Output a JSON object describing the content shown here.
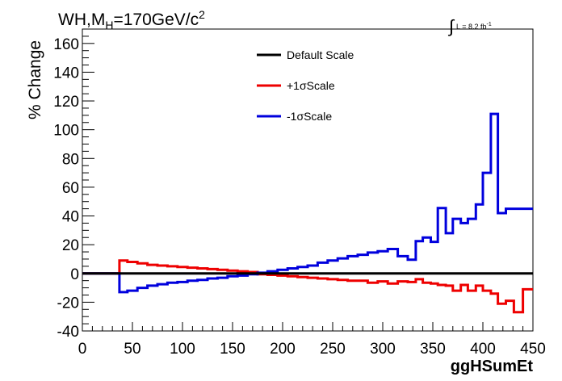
{
  "chart_data": {
    "type": "line",
    "title_parts": {
      "prefix": "WH,M",
      "sub": "H",
      "mid": "=170GeV/c",
      "sup": "2"
    },
    "luminosity": {
      "integral": "∫",
      "text": "L = 8.2 fb",
      "sup": "-1"
    },
    "xlabel": "ggHSumEt",
    "ylabel": "% Change",
    "xlim": [
      0,
      450
    ],
    "ylim": [
      -40,
      170
    ],
    "xticks": [
      0,
      50,
      100,
      150,
      200,
      250,
      300,
      350,
      400,
      450
    ],
    "yticks": [
      -40,
      -20,
      0,
      20,
      40,
      60,
      80,
      100,
      120,
      140,
      160
    ],
    "grid": false,
    "legend_position": "top-center",
    "bin_edges": [
      0,
      10,
      20,
      30,
      37,
      45,
      55,
      65,
      75,
      85,
      95,
      105,
      115,
      125,
      135,
      145,
      155,
      165,
      175,
      185,
      195,
      205,
      215,
      225,
      235,
      245,
      255,
      265,
      275,
      285,
      295,
      305,
      315,
      325,
      333,
      340,
      348,
      355,
      363,
      370,
      378,
      385,
      393,
      400,
      408,
      415,
      423,
      431,
      440,
      450
    ],
    "series": [
      {
        "name": "Default Scale",
        "color": "#000000",
        "values": [
          0,
          0,
          0,
          0,
          0,
          0,
          0,
          0,
          0,
          0,
          0,
          0,
          0,
          0,
          0,
          0,
          0,
          0,
          0,
          0,
          0,
          0,
          0,
          0,
          0,
          0,
          0,
          0,
          0,
          0,
          0,
          0,
          0,
          0,
          0,
          0,
          0,
          0,
          0,
          0,
          0,
          0,
          0,
          0,
          0,
          0,
          0,
          0,
          0
        ]
      },
      {
        "name": "+1σScale",
        "color": "#ee0000",
        "values": [
          0,
          0,
          0,
          0,
          9,
          8,
          7,
          6,
          5.5,
          5,
          4.5,
          4,
          3.5,
          3,
          2.5,
          2,
          1.5,
          1,
          -0.5,
          -1,
          -1.5,
          -2,
          -2.5,
          -3,
          -3.5,
          -4,
          -4.5,
          -5,
          -5,
          -6.5,
          -5.5,
          -7,
          -5.5,
          -6,
          -4,
          -6.5,
          -7,
          -8,
          -8.5,
          -12,
          -8,
          -12,
          -8.5,
          -12,
          -14,
          -21,
          -19,
          -27,
          -11
        ]
      },
      {
        "name": "-1σScale",
        "color": "#0000dd",
        "values": [
          0,
          0,
          0,
          0,
          -13,
          -12,
          -10,
          -8.5,
          -7.5,
          -6.5,
          -6,
          -5,
          -4.5,
          -3.5,
          -3,
          -2,
          -1.5,
          -0.5,
          0.5,
          1.5,
          2.5,
          3.5,
          4.5,
          5.5,
          7.5,
          9,
          10.5,
          12,
          13,
          14.5,
          15.5,
          17,
          12,
          9.5,
          22.5,
          25,
          22,
          45.5,
          28,
          38,
          35,
          38,
          48,
          70,
          111,
          42,
          45,
          45,
          45
        ]
      }
    ]
  }
}
